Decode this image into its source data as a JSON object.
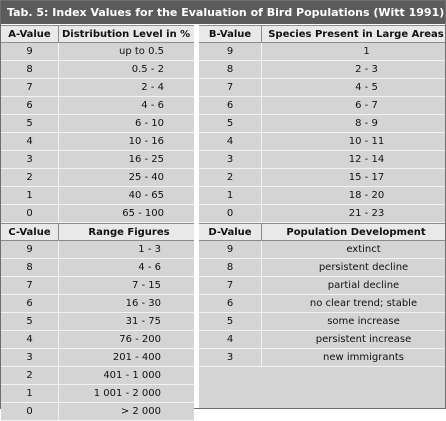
{
  "title": "Tab. 5: Index Values for the Evaluation of Bird Populations (Witt 1991)",
  "tables": {
    "a": {
      "headers": [
        "A-Value",
        "Distribution Level in %"
      ],
      "rows": [
        [
          "9",
          "up to 0.5"
        ],
        [
          "8",
          "0.5 - 2"
        ],
        [
          "7",
          "2 - 4"
        ],
        [
          "6",
          "4 - 6"
        ],
        [
          "5",
          "6 - 10"
        ],
        [
          "4",
          "10 - 16"
        ],
        [
          "3",
          "16 - 25"
        ],
        [
          "2",
          "25 - 40"
        ],
        [
          "1",
          "40 - 65"
        ],
        [
          "0",
          "65 - 100"
        ]
      ]
    },
    "b": {
      "headers": [
        "B-Value",
        "Species Present in Large Areas"
      ],
      "rows": [
        [
          "9",
          "1"
        ],
        [
          "8",
          "2 - 3"
        ],
        [
          "7",
          "4 - 5"
        ],
        [
          "6",
          "6 - 7"
        ],
        [
          "5",
          "8 - 9"
        ],
        [
          "4",
          "10 - 11"
        ],
        [
          "3",
          "12 - 14"
        ],
        [
          "2",
          "15 - 17"
        ],
        [
          "1",
          "18 - 20"
        ],
        [
          "0",
          "21 - 23"
        ]
      ]
    },
    "c": {
      "headers": [
        "C-Value",
        "Range Figures"
      ],
      "rows": [
        [
          "9",
          "1 - 3"
        ],
        [
          "8",
          "4 - 6"
        ],
        [
          "7",
          "7 - 15"
        ],
        [
          "6",
          "16 - 30"
        ],
        [
          "5",
          "31 - 75"
        ],
        [
          "4",
          "76 - 200"
        ],
        [
          "3",
          "201 - 400"
        ],
        [
          "2",
          "401 - 1 000"
        ],
        [
          "1",
          "1 001 - 2 000"
        ],
        [
          "0",
          "> 2 000"
        ]
      ]
    },
    "d": {
      "headers": [
        "D-Value",
        "Population Development"
      ],
      "rows": [
        [
          "9",
          "extinct"
        ],
        [
          "8",
          "persistent decline"
        ],
        [
          "7",
          "partial decline"
        ],
        [
          "6",
          "no clear trend; stable"
        ],
        [
          "5",
          "some increase"
        ],
        [
          "4",
          "persistent increase"
        ],
        [
          "3",
          "new immigrants"
        ]
      ]
    }
  }
}
